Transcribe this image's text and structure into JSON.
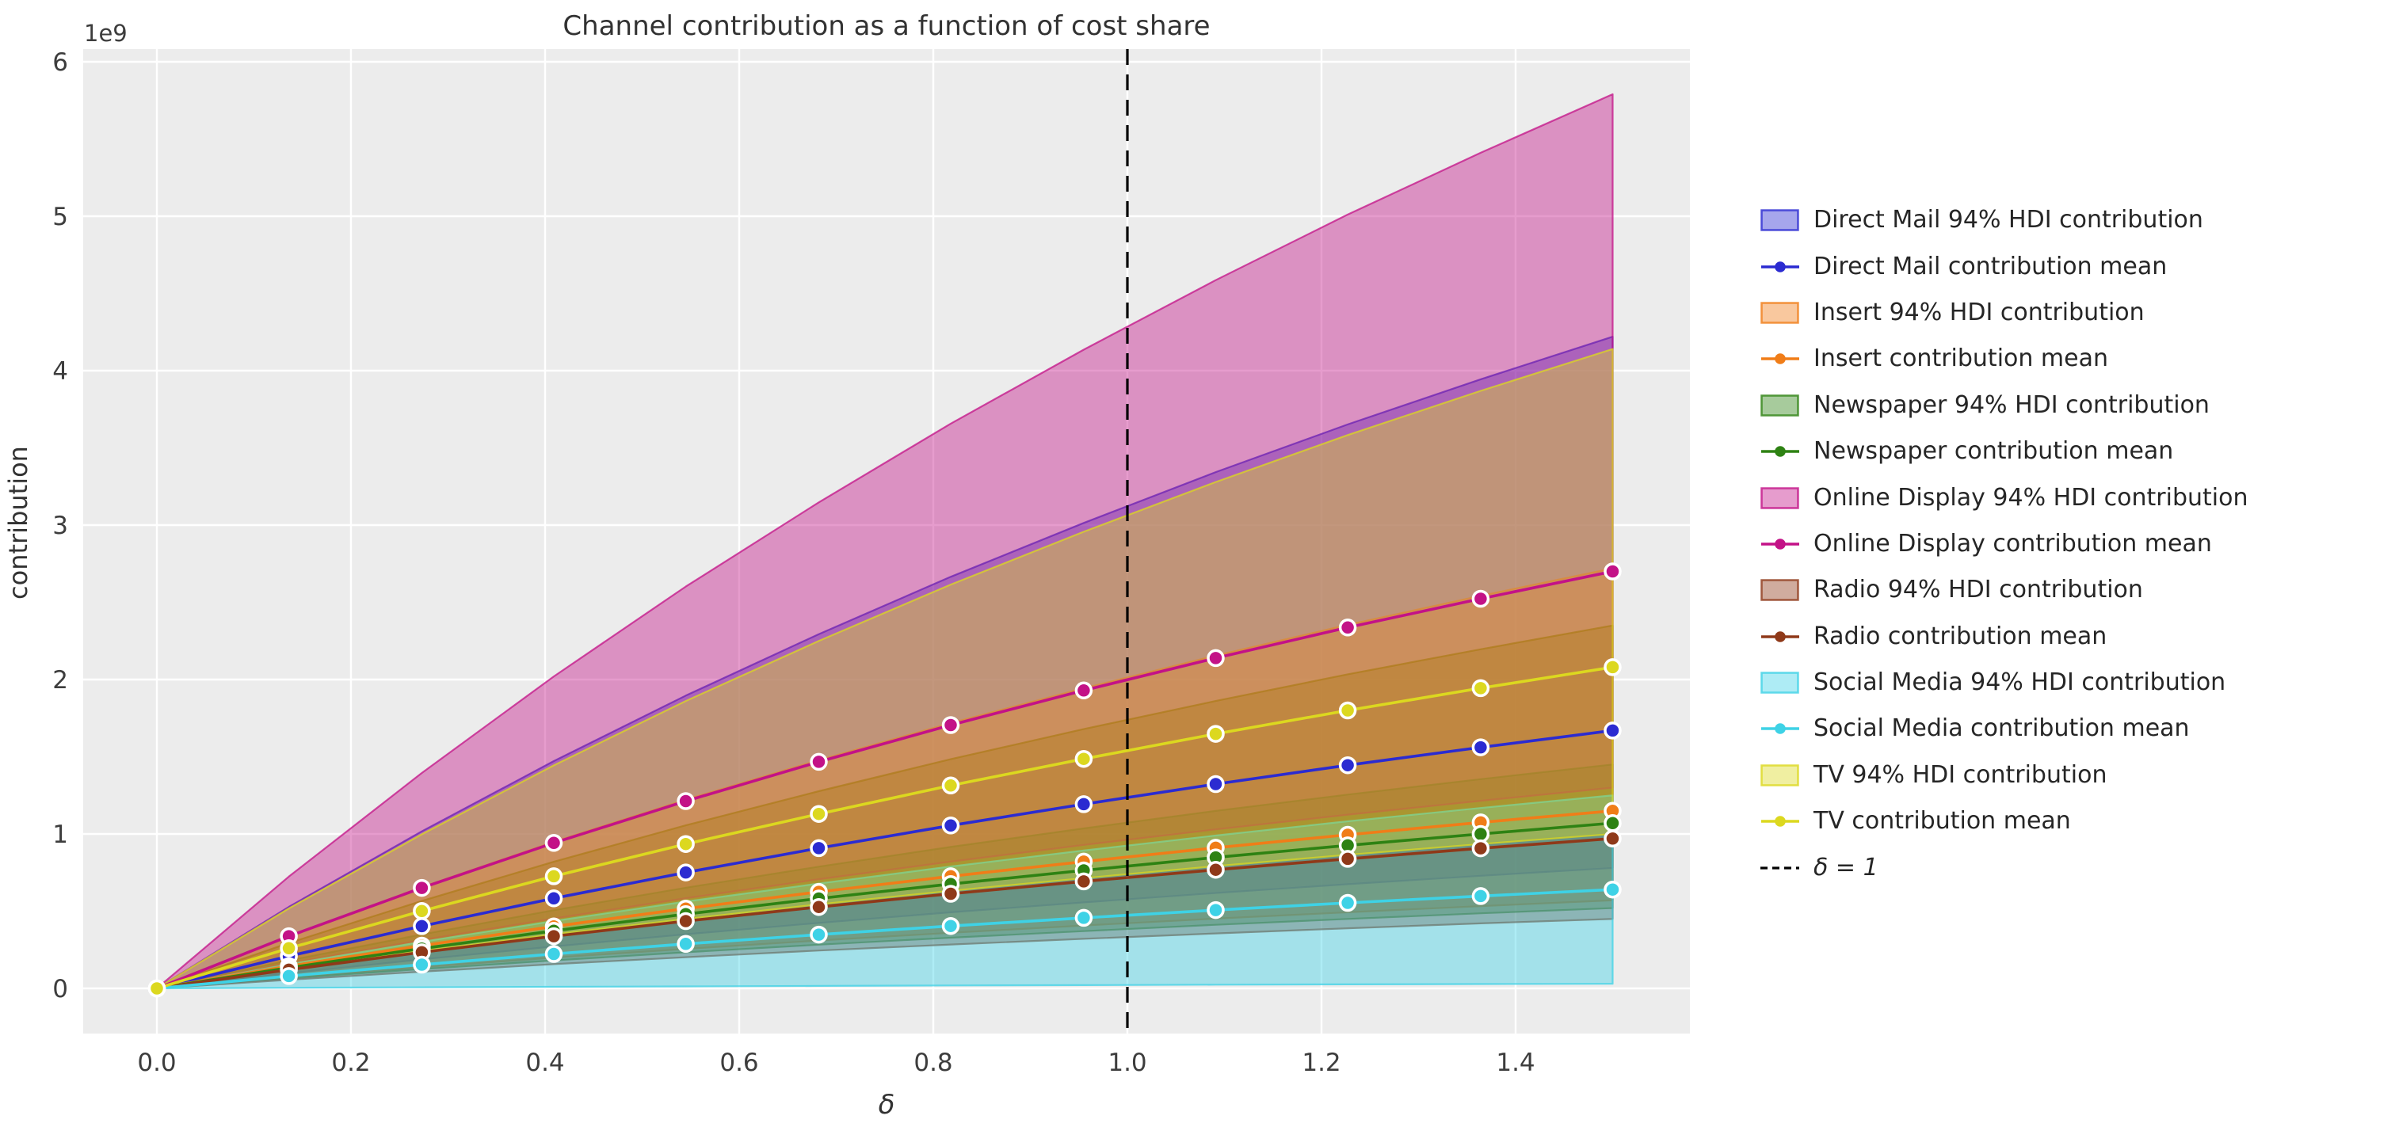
{
  "figure": {
    "background": "#ffffff",
    "plot_background": "#ececec",
    "grid_color": "#ffffff",
    "title_color": "#323232",
    "tick_color": "#3d3d3d",
    "marker_edge_color": "#ffffff"
  },
  "chart_data": {
    "type": "line+band",
    "title": "Channel contribution as a function of cost share",
    "xlabel": "δ",
    "ylabel": "contribution",
    "y_offset_text": "1e9",
    "y_units": "1e9",
    "grid": true,
    "legend_position": "right",
    "xlim": [
      -0.076,
      1.576
    ],
    "ylim": [
      -0.29,
      6.09
    ],
    "xticks": {
      "values": [
        0.0,
        0.2,
        0.4,
        0.6,
        0.8,
        1.0,
        1.2,
        1.4
      ],
      "labels": [
        "0.0",
        "0.2",
        "0.4",
        "0.6",
        "0.8",
        "1.0",
        "1.2",
        "1.4"
      ]
    },
    "yticks": {
      "values": [
        0,
        1,
        2,
        3,
        4,
        5,
        6
      ],
      "labels": [
        "0",
        "1",
        "2",
        "3",
        "4",
        "5",
        "6"
      ]
    },
    "vline": {
      "x": 1.0,
      "label": "δ = 1",
      "color": "#000000",
      "style": "dashed"
    },
    "x": [
      0.0,
      0.136,
      0.273,
      0.409,
      0.545,
      0.682,
      0.818,
      0.955,
      1.091,
      1.227,
      1.364,
      1.5
    ],
    "series": [
      {
        "name": "Direct Mail",
        "color": "#2b2bd1",
        "hdi_label": "Direct Mail 94% HDI contribution",
        "mean_label": "Direct Mail contribution mean",
        "mean": [
          0,
          0.209,
          0.403,
          0.583,
          0.751,
          0.908,
          1.055,
          1.193,
          1.323,
          1.445,
          1.561,
          1.67
        ],
        "hdi_lower": [
          0,
          0.098,
          0.188,
          0.272,
          0.351,
          0.424,
          0.493,
          0.557,
          0.618,
          0.675,
          0.729,
          0.78
        ],
        "hdi_upper": [
          0,
          0.528,
          1.017,
          1.472,
          1.896,
          2.294,
          2.665,
          3.014,
          3.343,
          3.652,
          3.944,
          4.22
        ]
      },
      {
        "name": "Insert",
        "color": "#f07d18",
        "hdi_label": "Insert 94% HDI contribution",
        "mean_label": "Insert contribution mean",
        "mean": [
          0,
          0.144,
          0.277,
          0.401,
          0.517,
          0.625,
          0.726,
          0.821,
          0.911,
          0.995,
          1.075,
          1.15
        ],
        "hdi_lower": [
          0,
          0.071,
          0.137,
          0.199,
          0.256,
          0.31,
          0.36,
          0.407,
          0.452,
          0.493,
          0.533,
          0.57
        ],
        "hdi_upper": [
          0,
          0.34,
          0.656,
          0.949,
          1.222,
          1.478,
          1.718,
          1.943,
          2.155,
          2.354,
          2.542,
          2.72
        ]
      },
      {
        "name": "Newspaper",
        "color": "#2e8213",
        "hdi_label": "Newspaper 94% HDI contribution",
        "mean_label": "Newspaper contribution mean",
        "mean": [
          0,
          0.134,
          0.258,
          0.373,
          0.481,
          0.582,
          0.676,
          0.764,
          0.848,
          0.926,
          1.0,
          1.07
        ],
        "hdi_lower": [
          0,
          0.065,
          0.125,
          0.181,
          0.234,
          0.283,
          0.328,
          0.371,
          0.412,
          0.45,
          0.486,
          0.52
        ],
        "hdi_upper": [
          0,
          0.181,
          0.349,
          0.506,
          0.652,
          0.788,
          0.916,
          1.036,
          1.149,
          1.255,
          1.355,
          1.45
        ]
      },
      {
        "name": "Online Display",
        "color": "#c31287",
        "hdi_label": "Online Display 94% HDI contribution",
        "mean_label": "Online Display contribution mean",
        "mean": [
          0,
          0.338,
          0.651,
          0.942,
          1.213,
          1.467,
          1.705,
          1.929,
          2.139,
          2.337,
          2.523,
          2.7
        ],
        "hdi_lower": [
          0,
          0.163,
          0.313,
          0.453,
          0.584,
          0.707,
          0.821,
          0.929,
          1.03,
          1.125,
          1.215,
          1.3
        ],
        "hdi_upper": [
          0,
          0.724,
          1.395,
          2.02,
          2.602,
          3.147,
          3.657,
          4.136,
          4.586,
          5.011,
          5.411,
          5.79
        ]
      },
      {
        "name": "Radio",
        "color": "#8f3919",
        "hdi_label": "Radio 94% HDI contribution",
        "mean_label": "Radio contribution mean",
        "mean": [
          0,
          0.121,
          0.234,
          0.338,
          0.436,
          0.527,
          0.613,
          0.693,
          0.768,
          0.839,
          0.907,
          0.97
        ],
        "hdi_lower": [
          0,
          0.056,
          0.108,
          0.157,
          0.202,
          0.245,
          0.284,
          0.321,
          0.356,
          0.389,
          0.421,
          0.45
        ],
        "hdi_upper": [
          0,
          0.294,
          0.566,
          0.82,
          1.056,
          1.277,
          1.484,
          1.679,
          1.861,
          2.034,
          2.196,
          2.35
        ]
      },
      {
        "name": "Social Media",
        "color": "#3ed2e6",
        "hdi_label": "Social Media 94% HDI contribution",
        "mean_label": "Social Media contribution mean",
        "mean": [
          0,
          0.08,
          0.154,
          0.223,
          0.288,
          0.348,
          0.404,
          0.457,
          0.507,
          0.554,
          0.598,
          0.64
        ],
        "hdi_lower": [
          0,
          0.004,
          0.007,
          0.01,
          0.013,
          0.016,
          0.019,
          0.021,
          0.024,
          0.026,
          0.028,
          0.03
        ],
        "hdi_upper": [
          0,
          0.156,
          0.301,
          0.436,
          0.562,
          0.679,
          0.789,
          0.893,
          0.99,
          1.082,
          1.168,
          1.25
        ]
      },
      {
        "name": "TV",
        "color": "#dcd81f",
        "hdi_label": "TV 94% HDI contribution",
        "mean_label": "TV contribution mean",
        "mean": [
          0,
          0.26,
          0.501,
          0.726,
          0.935,
          1.13,
          1.314,
          1.486,
          1.648,
          1.8,
          1.944,
          2.08
        ],
        "hdi_lower": [
          0,
          0.125,
          0.241,
          0.349,
          0.449,
          0.544,
          0.632,
          0.714,
          0.792,
          0.865,
          0.935,
          1.0
        ],
        "hdi_upper": [
          0,
          0.518,
          0.998,
          1.444,
          1.861,
          2.25,
          2.615,
          2.957,
          3.279,
          3.583,
          3.869,
          4.14
        ]
      }
    ]
  }
}
